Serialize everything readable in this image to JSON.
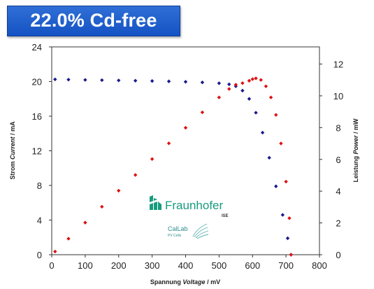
{
  "title": "22.0% Cd-free",
  "logos": {
    "fraunhofer": {
      "name": "Fraunhofer",
      "sub": "ISE"
    },
    "callab": {
      "name": "CalLab",
      "sub": "PV Cells"
    }
  },
  "chart_data": {
    "type": "line",
    "xlabel": {
      "prefix": "Spannung ",
      "italic": "Voltage",
      "suffix": " / mV"
    },
    "ylabel_left": {
      "prefix": "Strom ",
      "italic": "Current",
      "suffix": " / mA"
    },
    "ylabel_right": {
      "prefix": "Leistung ",
      "italic": "Power",
      "suffix": " / mW"
    },
    "xlim": [
      0,
      800
    ],
    "ylim_left": [
      0,
      24
    ],
    "ylim_right": [
      0,
      13.08
    ],
    "x_ticks": [
      "0",
      "100",
      "200",
      "300",
      "400",
      "500",
      "600",
      "700",
      "800"
    ],
    "y_left_ticks": [
      "0",
      "4",
      "8",
      "12",
      "16",
      "20",
      "24"
    ],
    "y_right_ticks": [
      "0",
      "2",
      "4",
      "6",
      "8",
      "10",
      "12"
    ],
    "grid": false,
    "series": [
      {
        "axis": "left",
        "color": "#1a1a8c",
        "marker": "diamond",
        "points": [
          [
            10,
            20.25
          ],
          [
            50,
            20.22
          ],
          [
            100,
            20.19
          ],
          [
            150,
            20.16
          ],
          [
            200,
            20.13
          ],
          [
            250,
            20.1
          ],
          [
            300,
            20.06
          ],
          [
            350,
            20.02
          ],
          [
            400,
            19.97
          ],
          [
            450,
            19.9
          ],
          [
            500,
            19.8
          ],
          [
            530,
            19.68
          ],
          [
            550,
            19.45
          ],
          [
            570,
            18.95
          ],
          [
            590,
            18.0
          ],
          [
            610,
            16.4
          ],
          [
            630,
            14.1
          ],
          [
            650,
            11.2
          ],
          [
            670,
            7.9
          ],
          [
            690,
            4.6
          ],
          [
            705,
            1.9
          ],
          [
            715,
            0.0
          ]
        ]
      },
      {
        "axis": "right",
        "color": "#e01010",
        "marker": "diamond",
        "points": [
          [
            10,
            0.2
          ],
          [
            50,
            1.01
          ],
          [
            100,
            2.02
          ],
          [
            150,
            3.02
          ],
          [
            200,
            4.03
          ],
          [
            250,
            5.02
          ],
          [
            300,
            6.02
          ],
          [
            350,
            7.01
          ],
          [
            400,
            7.99
          ],
          [
            450,
            8.96
          ],
          [
            500,
            9.9
          ],
          [
            530,
            10.43
          ],
          [
            550,
            10.7
          ],
          [
            570,
            10.8
          ],
          [
            590,
            10.95
          ],
          [
            600,
            11.05
          ],
          [
            610,
            11.1
          ],
          [
            625,
            11.0
          ],
          [
            640,
            10.6
          ],
          [
            655,
            9.9
          ],
          [
            670,
            8.8
          ],
          [
            685,
            7.0
          ],
          [
            700,
            4.6
          ],
          [
            710,
            2.3
          ],
          [
            715,
            0.0
          ]
        ]
      }
    ]
  }
}
